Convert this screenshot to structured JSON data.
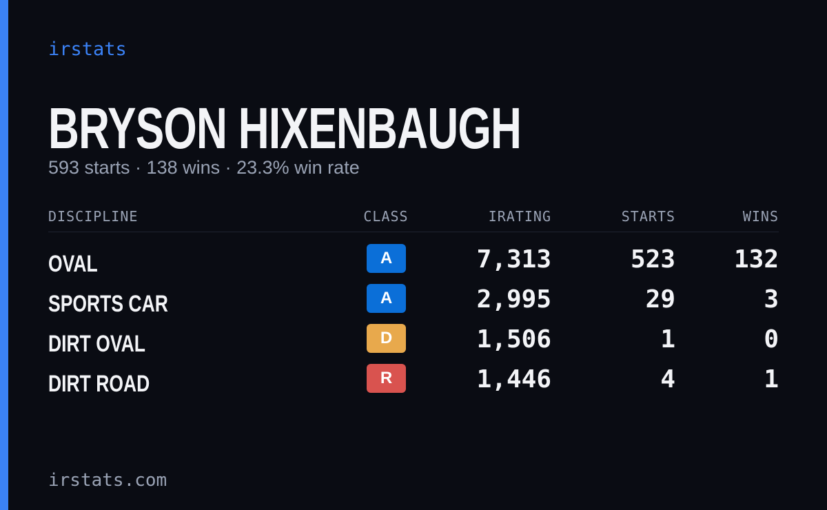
{
  "brand": "irstats",
  "header": {
    "title": "BRYSON HIXENBAUGH",
    "subtitle": "593 starts · 138 wins · 23.3% win rate"
  },
  "table": {
    "headers": [
      "DISCIPLINE",
      "CLASS",
      "IRATING",
      "STARTS",
      "WINS"
    ],
    "rows": [
      {
        "discipline": "OVAL",
        "class": "A",
        "color": "#0b6fd8",
        "irating": "7,313",
        "starts": "523",
        "wins": "132"
      },
      {
        "discipline": "SPORTS CAR",
        "class": "A",
        "color": "#0b6fd8",
        "irating": "2,995",
        "starts": "29",
        "wins": "3"
      },
      {
        "discipline": "DIRT OVAL",
        "class": "D",
        "color": "#e8a94c",
        "irating": "1,506",
        "starts": "1",
        "wins": "0"
      },
      {
        "discipline": "DIRT ROAD",
        "class": "R",
        "color": "#d9534f",
        "irating": "1,446",
        "starts": "4",
        "wins": "1"
      }
    ]
  },
  "footer": "irstats.com"
}
